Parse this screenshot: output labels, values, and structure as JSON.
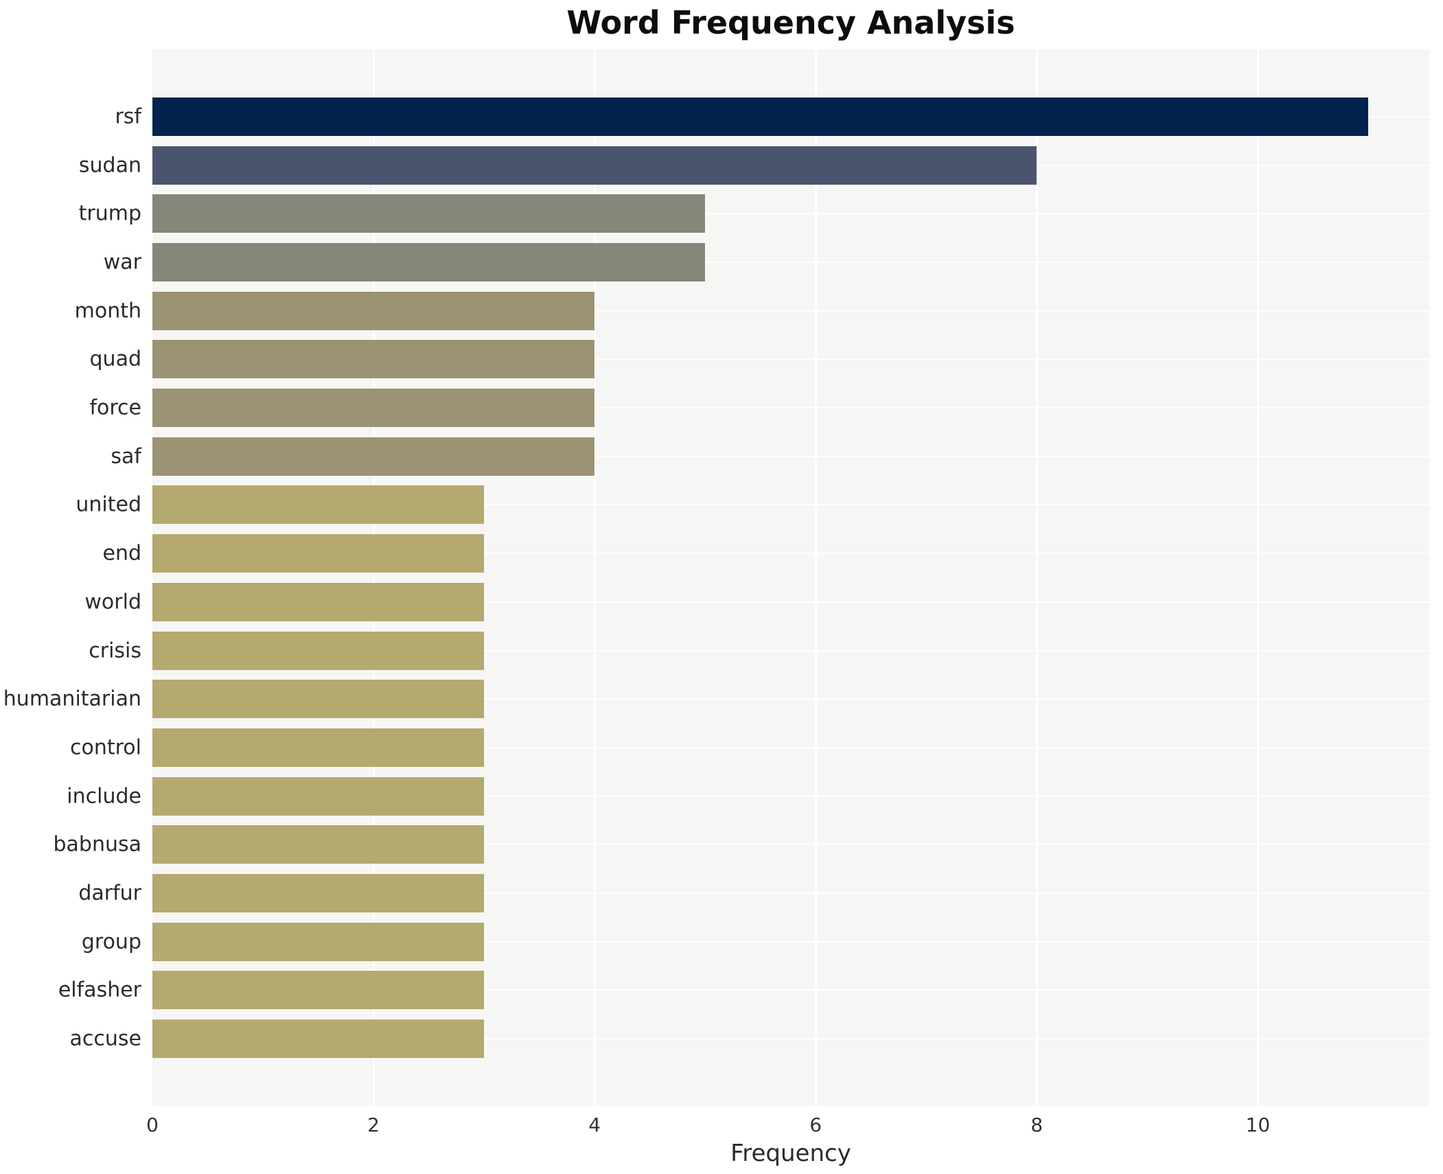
{
  "chart_data": {
    "type": "bar",
    "orientation": "horizontal",
    "title": "Word Frequency Analysis",
    "xlabel": "Frequency",
    "ylabel": "",
    "categories": [
      "rsf",
      "sudan",
      "trump",
      "war",
      "month",
      "quad",
      "force",
      "saf",
      "united",
      "end",
      "world",
      "crisis",
      "humanitarian",
      "control",
      "include",
      "babnusa",
      "darfur",
      "group",
      "elfasher",
      "accuse"
    ],
    "values": [
      11,
      8,
      5,
      5,
      4,
      4,
      4,
      4,
      3,
      3,
      3,
      3,
      3,
      3,
      3,
      3,
      3,
      3,
      3,
      3
    ],
    "bar_colors": [
      "#02234d",
      "#4a546e",
      "#87867b",
      "#87867b",
      "#9c9374",
      "#9c9374",
      "#9c9374",
      "#9c9374",
      "#b4a96e",
      "#b4a96e",
      "#b4a96e",
      "#b4a96e",
      "#b4a96e",
      "#b4a96e",
      "#b4a96e",
      "#b4a96e",
      "#b4a96e",
      "#b4a96e",
      "#b4a96e",
      "#b4a96e"
    ],
    "xlim": [
      0,
      11.55
    ],
    "x_ticks": [
      0,
      2,
      4,
      6,
      8,
      10
    ],
    "grid": true,
    "legend_position": "none",
    "plot_background": "#f6f6f4",
    "gridline_color": "#ffffff",
    "figure_background": "#ffffff",
    "title_color": "#0d0d0d",
    "tick_label_color": "#333333"
  }
}
